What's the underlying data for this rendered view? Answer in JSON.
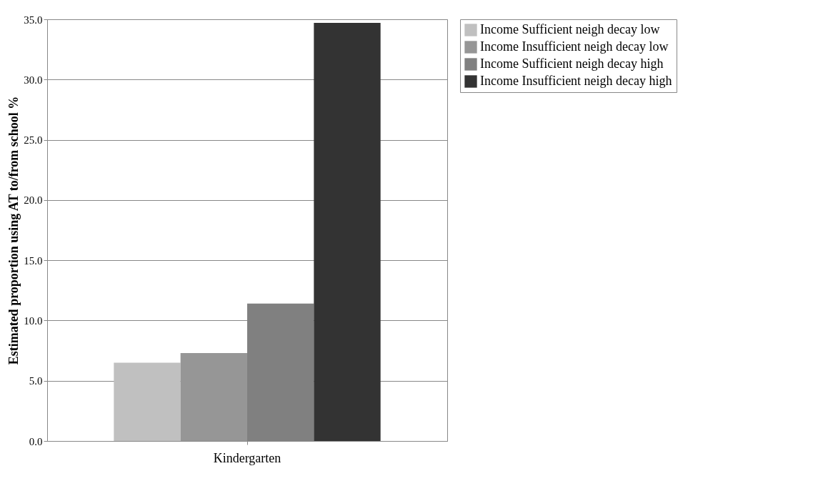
{
  "chart_data": {
    "type": "bar",
    "ylabel": "Estimated proportion using AT to/from school %",
    "categories": [
      "Kindergarten"
    ],
    "series": [
      {
        "name": "Income Sufficient neigh decay low",
        "color": "#c0c0c0",
        "values": [
          6.5
        ]
      },
      {
        "name": "Income Insufficient neigh decay low",
        "color": "#969696",
        "values": [
          7.3
        ]
      },
      {
        "name": "Income Sufficient neigh decay high",
        "color": "#808080",
        "values": [
          11.4
        ]
      },
      {
        "name": "Income Insufficient neigh decay high",
        "color": "#333333",
        "values": [
          34.7
        ]
      }
    ],
    "ylim": [
      0,
      35
    ],
    "yticks": [
      {
        "value": 0,
        "label": "0.0"
      },
      {
        "value": 5,
        "label": "5.0"
      },
      {
        "value": 10,
        "label": "10.0"
      },
      {
        "value": 15,
        "label": "15.0"
      },
      {
        "value": 20,
        "label": "20.0"
      },
      {
        "value": 25,
        "label": "25.0"
      },
      {
        "value": 30,
        "label": "30.0"
      },
      {
        "value": 35,
        "label": "35.0"
      }
    ],
    "grid": "y",
    "legend": "right"
  }
}
